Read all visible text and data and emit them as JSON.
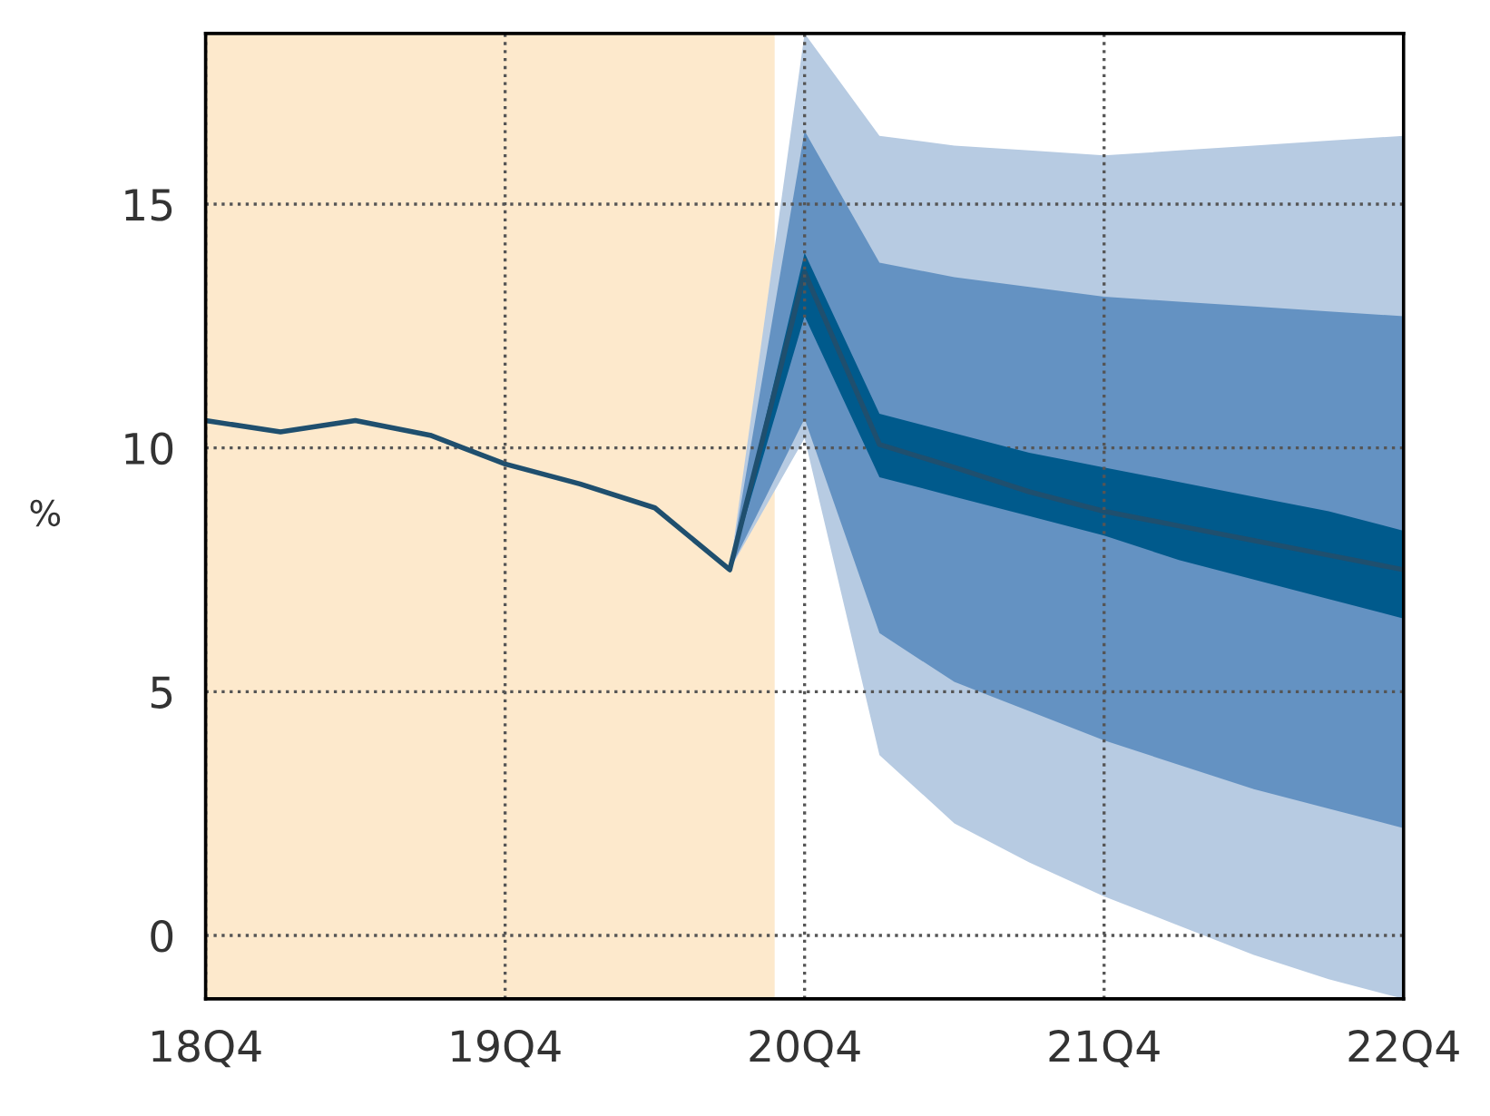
{
  "chart_data": {
    "type": "line",
    "ylabel": "%",
    "categories": [
      "18Q4",
      null,
      null,
      null,
      "19Q4",
      null,
      null,
      null,
      "20Q4",
      null,
      null,
      null,
      "21Q4",
      null,
      null,
      null,
      "22Q4"
    ],
    "series": [
      {
        "color": "#b7cbe2",
        "values": [
          null,
          null,
          null,
          null,
          null,
          null,
          null,
          null,
          null,
          null,
          null,
          null,
          null,
          null,
          null,
          null,
          null
        ],
        "lower": [
          null,
          null,
          null,
          null,
          null,
          null,
          null,
          7.5,
          10.2,
          3.7,
          2.3,
          1.5,
          0.8,
          0.2,
          -0.4,
          -0.9,
          -1.3
        ],
        "upper": [
          null,
          null,
          null,
          null,
          null,
          null,
          null,
          7.5,
          18.5,
          16.4,
          16.2,
          16.1,
          16.0,
          16.1,
          16.2,
          16.3,
          16.4
        ]
      },
      {
        "color": "#6492c2",
        "values": [
          null,
          null,
          null,
          null,
          null,
          null,
          null,
          null,
          null,
          null,
          null,
          null,
          null,
          null,
          null,
          null,
          null
        ],
        "lower": [
          null,
          null,
          null,
          null,
          null,
          null,
          null,
          7.5,
          10.6,
          6.2,
          5.2,
          4.6,
          4.0,
          3.5,
          3.0,
          2.6,
          2.2
        ],
        "upper": [
          null,
          null,
          null,
          null,
          null,
          null,
          null,
          7.5,
          16.5,
          13.8,
          13.5,
          13.3,
          13.1,
          13.0,
          12.9,
          12.8,
          12.7
        ]
      },
      {
        "color": "#005a8c",
        "values": [
          null,
          null,
          null,
          null,
          null,
          null,
          null,
          null,
          null,
          null,
          null,
          null,
          null,
          null,
          null,
          null,
          null
        ],
        "lower": [
          null,
          null,
          null,
          null,
          null,
          null,
          null,
          7.5,
          12.7,
          9.4,
          9.0,
          8.6,
          8.2,
          7.7,
          7.3,
          6.9,
          6.5
        ],
        "upper": [
          null,
          null,
          null,
          null,
          null,
          null,
          null,
          7.5,
          14.0,
          10.7,
          10.3,
          9.9,
          9.6,
          9.3,
          9.0,
          8.7,
          8.3
        ]
      },
      {
        "color": "#1f4f6e",
        "values": [
          10.56,
          10.33,
          10.56,
          10.26,
          9.67,
          9.26,
          8.77,
          7.5,
          13.6,
          10.07,
          9.6,
          9.1,
          8.7,
          8.4,
          8.1,
          7.8,
          7.5
        ]
      }
    ],
    "ylim": [
      -1.3,
      18.5
    ],
    "yticks": [
      0,
      5,
      10,
      15
    ],
    "grid": true,
    "line_style": "solid",
    "marker": "none"
  }
}
